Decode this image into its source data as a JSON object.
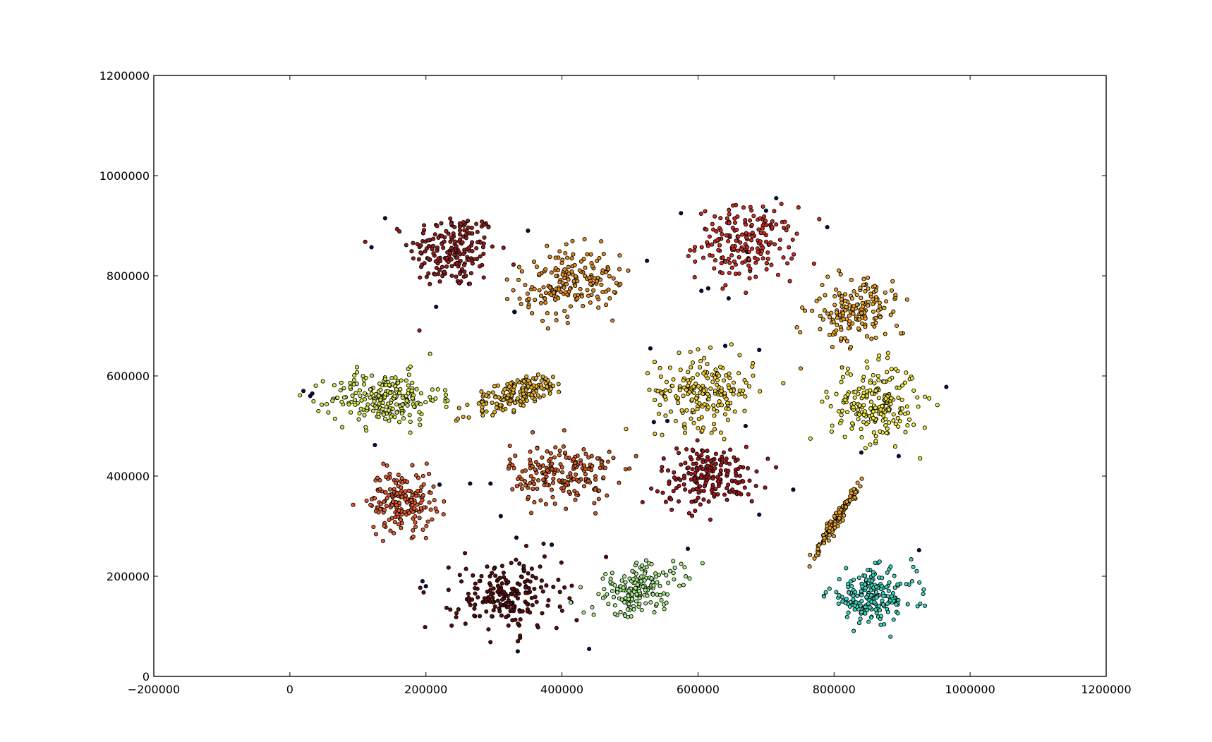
{
  "chart_data": {
    "type": "scatter",
    "title": "",
    "xlabel": "",
    "ylabel": "",
    "xlim": [
      -200000,
      1200000
    ],
    "ylim": [
      0,
      1200000
    ],
    "xticks": [
      -200000,
      0,
      200000,
      400000,
      600000,
      800000,
      1000000,
      1200000
    ],
    "yticks": [
      0,
      200000,
      400000,
      600000,
      800000,
      1000000,
      1200000
    ],
    "xtick_labels": [
      "−200000",
      "0",
      "200000",
      "400000",
      "600000",
      "800000",
      "1000000",
      "1200000"
    ],
    "ytick_labels": [
      "0",
      "200000",
      "400000",
      "600000",
      "800000",
      "1000000",
      "1200000"
    ],
    "grid": false,
    "legend": "none",
    "marker_edge_color": "#000000",
    "clusters": [
      {
        "center": [
          240000,
          850000
        ],
        "spread": [
          32000,
          38000
        ],
        "tilt": 0,
        "count": 200,
        "color": "#9b1c1c"
      },
      {
        "center": [
          410000,
          785000
        ],
        "spread": [
          38000,
          32000
        ],
        "tilt": 0.35,
        "count": 190,
        "color": "#e58a1a"
      },
      {
        "center": [
          670000,
          865000
        ],
        "spread": [
          36000,
          36000
        ],
        "tilt": 0,
        "count": 200,
        "color": "#d42a20"
      },
      {
        "center": [
          830000,
          730000
        ],
        "spread": [
          28000,
          36000
        ],
        "tilt": -0.5,
        "count": 170,
        "color": "#f0a522"
      },
      {
        "center": [
          140000,
          555000
        ],
        "spread": [
          40000,
          26000
        ],
        "tilt": 0,
        "count": 220,
        "color": "#d4e84a"
      },
      {
        "center": [
          335000,
          565000
        ],
        "spread": [
          38000,
          14000
        ],
        "tilt": 0.5,
        "count": 170,
        "color": "#e8b026"
      },
      {
        "center": [
          610000,
          570000
        ],
        "spread": [
          36000,
          36000
        ],
        "tilt": 0,
        "count": 200,
        "color": "#f2d22e"
      },
      {
        "center": [
          860000,
          545000
        ],
        "spread": [
          32000,
          38000
        ],
        "tilt": 0,
        "count": 210,
        "color": "#f2ea36"
      },
      {
        "center": [
          165000,
          350000
        ],
        "spread": [
          24000,
          30000
        ],
        "tilt": 0,
        "count": 190,
        "color": "#e8582a"
      },
      {
        "center": [
          400000,
          405000
        ],
        "spread": [
          38000,
          30000
        ],
        "tilt": 0,
        "count": 200,
        "color": "#d85a20"
      },
      {
        "center": [
          615000,
          400000
        ],
        "spread": [
          36000,
          30000
        ],
        "tilt": 0,
        "count": 200,
        "color": "#a8151a"
      },
      {
        "center": [
          805000,
          315000
        ],
        "spread": [
          4000,
          40000
        ],
        "tilt": -0.45,
        "count": 120,
        "color": "#e8a02a"
      },
      {
        "center": [
          320000,
          160000
        ],
        "spread": [
          40000,
          36000
        ],
        "tilt": 0,
        "count": 200,
        "color": "#5e0c0c"
      },
      {
        "center": [
          510000,
          175000
        ],
        "spread": [
          36000,
          22000
        ],
        "tilt": 0.45,
        "count": 180,
        "color": "#a8ef8a"
      },
      {
        "center": [
          855000,
          160000
        ],
        "spread": [
          32000,
          26000
        ],
        "tilt": 0,
        "count": 200,
        "color": "#3ad8c0"
      }
    ],
    "noise": {
      "color": "#0a0a4a",
      "points": [
        [
          20000,
          570000
        ],
        [
          30000,
          560000
        ],
        [
          33000,
          565000
        ],
        [
          120000,
          857000
        ],
        [
          140000,
          915000
        ],
        [
          215000,
          738000
        ],
        [
          330000,
          728000
        ],
        [
          350000,
          890000
        ],
        [
          525000,
          830000
        ],
        [
          575000,
          925000
        ],
        [
          605000,
          770000
        ],
        [
          615000,
          775000
        ],
        [
          645000,
          755000
        ],
        [
          700000,
          930000
        ],
        [
          715000,
          955000
        ],
        [
          790000,
          897000
        ],
        [
          125000,
          462000
        ],
        [
          220000,
          383000
        ],
        [
          265000,
          385000
        ],
        [
          295000,
          385000
        ],
        [
          310000,
          320000
        ],
        [
          333000,
          277000
        ],
        [
          385000,
          263000
        ],
        [
          195000,
          190000
        ],
        [
          200000,
          180000
        ],
        [
          440000,
          55000
        ],
        [
          335000,
          50000
        ],
        [
          530000,
          655000
        ],
        [
          640000,
          660000
        ],
        [
          690000,
          652000
        ],
        [
          670000,
          500000
        ],
        [
          690000,
          323000
        ],
        [
          740000,
          373000
        ],
        [
          585000,
          255000
        ],
        [
          555000,
          510000
        ],
        [
          965000,
          578000
        ],
        [
          840000,
          447000
        ],
        [
          895000,
          440000
        ],
        [
          925000,
          252000
        ],
        [
          535000,
          508000
        ]
      ]
    }
  }
}
